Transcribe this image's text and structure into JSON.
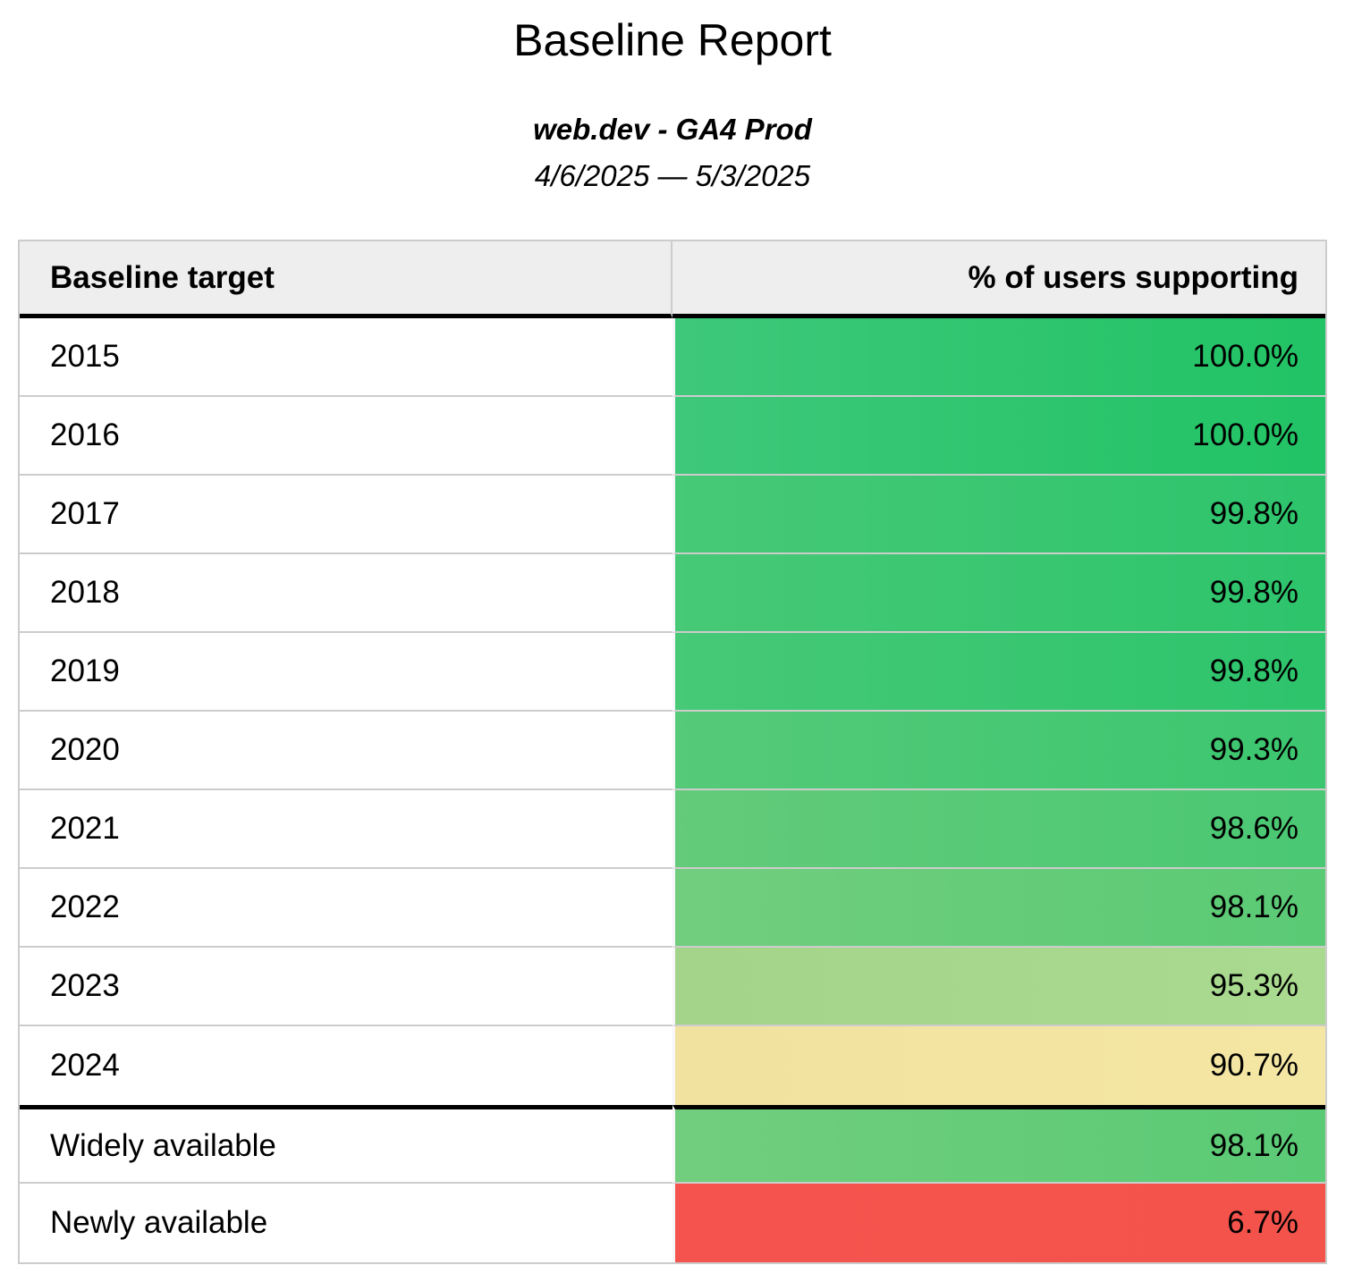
{
  "report": {
    "title": "Baseline Report",
    "property_name": "web.dev - GA4 Prod",
    "date_range": "4/6/2025 — 5/3/2025"
  },
  "table": {
    "columns": {
      "target": "Baseline target",
      "percent": "% of users supporting"
    },
    "rows": [
      {
        "target": "2015",
        "value": "100.0%",
        "color_left": "#3ec87a",
        "color_right": "#21c365"
      },
      {
        "target": "2016",
        "value": "100.0%",
        "color_left": "#3ec87a",
        "color_right": "#21c365"
      },
      {
        "target": "2017",
        "value": "99.8%",
        "color_left": "#47c977",
        "color_right": "#2dc46c"
      },
      {
        "target": "2018",
        "value": "99.8%",
        "color_left": "#47c977",
        "color_right": "#2dc46c"
      },
      {
        "target": "2019",
        "value": "99.8%",
        "color_left": "#47c977",
        "color_right": "#2dc46c"
      },
      {
        "target": "2020",
        "value": "99.3%",
        "color_left": "#55ca79",
        "color_right": "#3cc66f"
      },
      {
        "target": "2021",
        "value": "98.6%",
        "color_left": "#63cb7a",
        "color_right": "#4ac873"
      },
      {
        "target": "2022",
        "value": "98.1%",
        "color_left": "#71ce7e",
        "color_right": "#5aca75"
      },
      {
        "target": "2023",
        "value": "95.3%",
        "color_left": "#a4d489",
        "color_right": "#a9da90"
      },
      {
        "target": "2024",
        "value": "90.7%",
        "color_left": "#f2e2a0",
        "color_right": "#f4e6a3"
      },
      {
        "target": "Widely available",
        "value": "98.1%",
        "color_left": "#71ce7e",
        "color_right": "#5aca75",
        "divider_before": true
      },
      {
        "target": "Newly available",
        "value": "6.7%",
        "color_left": "#f4544d",
        "color_right": "#f4534c"
      }
    ]
  },
  "chart_data": {
    "type": "table",
    "title": "Baseline Report",
    "subtitle": "web.dev - GA4 Prod",
    "date_range": "4/6/2025 — 5/3/2025",
    "columns": [
      "Baseline target",
      "% of users supporting"
    ],
    "categories": [
      "2015",
      "2016",
      "2017",
      "2018",
      "2019",
      "2020",
      "2021",
      "2022",
      "2023",
      "2024",
      "Widely available",
      "Newly available"
    ],
    "values": [
      100.0,
      100.0,
      99.8,
      99.8,
      99.8,
      99.3,
      98.6,
      98.1,
      95.3,
      90.7,
      98.1,
      6.7
    ]
  },
  "colors": {
    "header_bg": "#eeeeee",
    "grid_line": "#cccccc",
    "section_divider": "#000000",
    "good": "#21c365",
    "warn": "#f4e6a3",
    "bad": "#f4534c"
  }
}
